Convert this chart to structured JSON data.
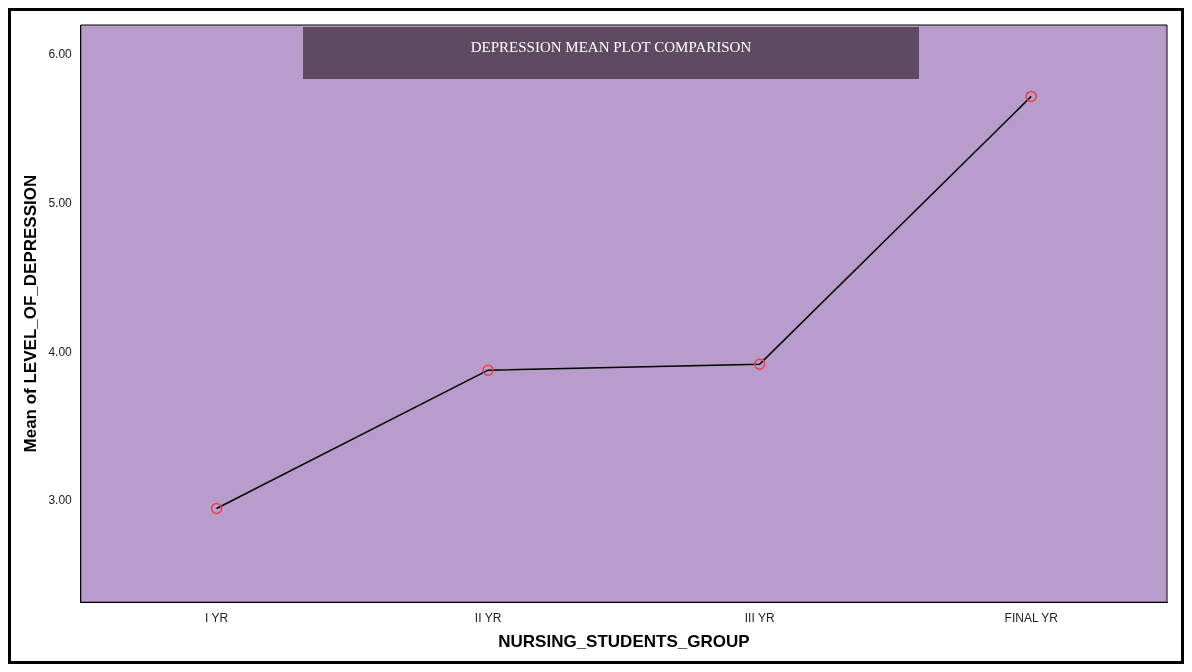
{
  "chart_data": {
    "type": "line",
    "title": "DEPRESSION MEAN PLOT COMPARISON",
    "xlabel": "NURSING_STUDENTS_GROUP",
    "ylabel": "Mean of LEVEL_OF_DEPRESSION",
    "categories": [
      "I YR",
      "II YR",
      "III YR",
      "FINAL YR"
    ],
    "series": [
      {
        "color": "#000000",
        "values": [
          2.95,
          3.88,
          3.92,
          5.72
        ]
      }
    ],
    "ylim": [
      2.32,
      6.2
    ],
    "yticks": [
      {
        "value": 3,
        "label": "3.00"
      },
      {
        "value": 4,
        "label": "4.00"
      },
      {
        "value": 5,
        "label": "5.00"
      },
      {
        "value": 6,
        "label": "6.00"
      }
    ],
    "grid": false,
    "legend": false,
    "marker": "circle",
    "line_style": "solid"
  }
}
